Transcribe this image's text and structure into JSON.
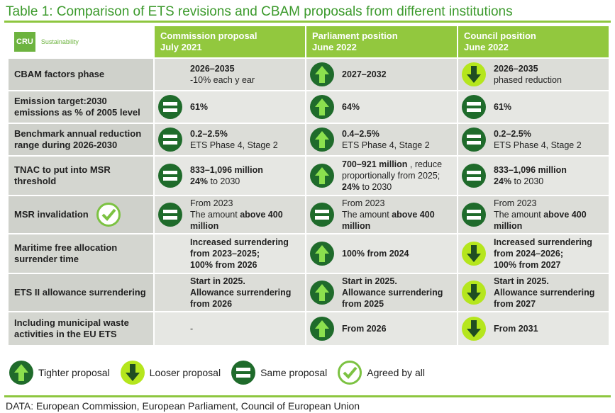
{
  "title": "Table 1: Comparison of ETS revisions and CBAM proposals from different institutions",
  "logo": {
    "mark": "CRU",
    "text": "Sustainability"
  },
  "headers": [
    [
      "Commission proposal",
      "July 2021"
    ],
    [
      "Parliament position",
      "June 2022"
    ],
    [
      "Council position",
      "June 2022"
    ]
  ],
  "rows": [
    {
      "label": "CBAM factors phase",
      "cells": [
        [
          "2026–2035",
          "-10% each y ear"
        ],
        [
          "2027–2032"
        ],
        [
          "2026–2035",
          "phased reduction"
        ]
      ]
    },
    {
      "label": "Emission target:2030 emissions as % of 2005 level",
      "cells": [
        [
          "61%"
        ],
        [
          "64%"
        ],
        [
          "61%"
        ]
      ]
    },
    {
      "label": "Benchmark annual reduction range during 2026-2030",
      "cells": [
        [
          "0.2–2.5%",
          "ETS Phase 4, Stage 2"
        ],
        [
          "0.4–2.5%",
          "ETS Phase 4, Stage 2"
        ],
        [
          "0.2–2.5%",
          "ETS Phase 4, Stage 2"
        ]
      ]
    },
    {
      "label": "TNAC to put into MSR threshold",
      "cells": [
        [
          "833–1,096 million",
          "24%",
          "to 2030"
        ],
        [
          "700–921 million",
          ", reduce proportionally from 2025;",
          "24%",
          "to 2030"
        ],
        [
          "833–1,096 million",
          "24%",
          "to 2030"
        ]
      ]
    },
    {
      "label": "MSR invalidation",
      "cells": [
        [
          "From 2023",
          "The amount",
          "above 400 million"
        ],
        [
          "From 2023",
          "The amount",
          "above 400 million"
        ],
        [
          "From 2023",
          "The amount",
          "above 400 million"
        ]
      ]
    },
    {
      "label": "Maritime free allocation surrender time",
      "cells": [
        [
          "Increased surrendering from 2023–2025;",
          "100% from 2026"
        ],
        [
          "100% from 2024"
        ],
        [
          "Increased surrendering from 2024–2026;",
          "100% from 2027"
        ]
      ]
    },
    {
      "label": "ETS II allowance surrendering",
      "cells": [
        [
          "Start in 2025.",
          "Allowance surrendering from 2026"
        ],
        [
          "Start in 2025.",
          "Allowance surrendering from 2025"
        ],
        [
          "Start in 2025.",
          "Allowance surrendering from 2027"
        ]
      ]
    },
    {
      "label": "Including municipal waste activities in the EU ETS",
      "cells": [
        [
          "-"
        ],
        [
          "From 2026"
        ],
        [
          "From 2031"
        ]
      ]
    }
  ],
  "legend": [
    "Tighter proposal",
    "Looser proposal",
    "Same proposal",
    "Agreed by all"
  ],
  "source": "DATA: European Commission, European Parliament, Council of European Union"
}
